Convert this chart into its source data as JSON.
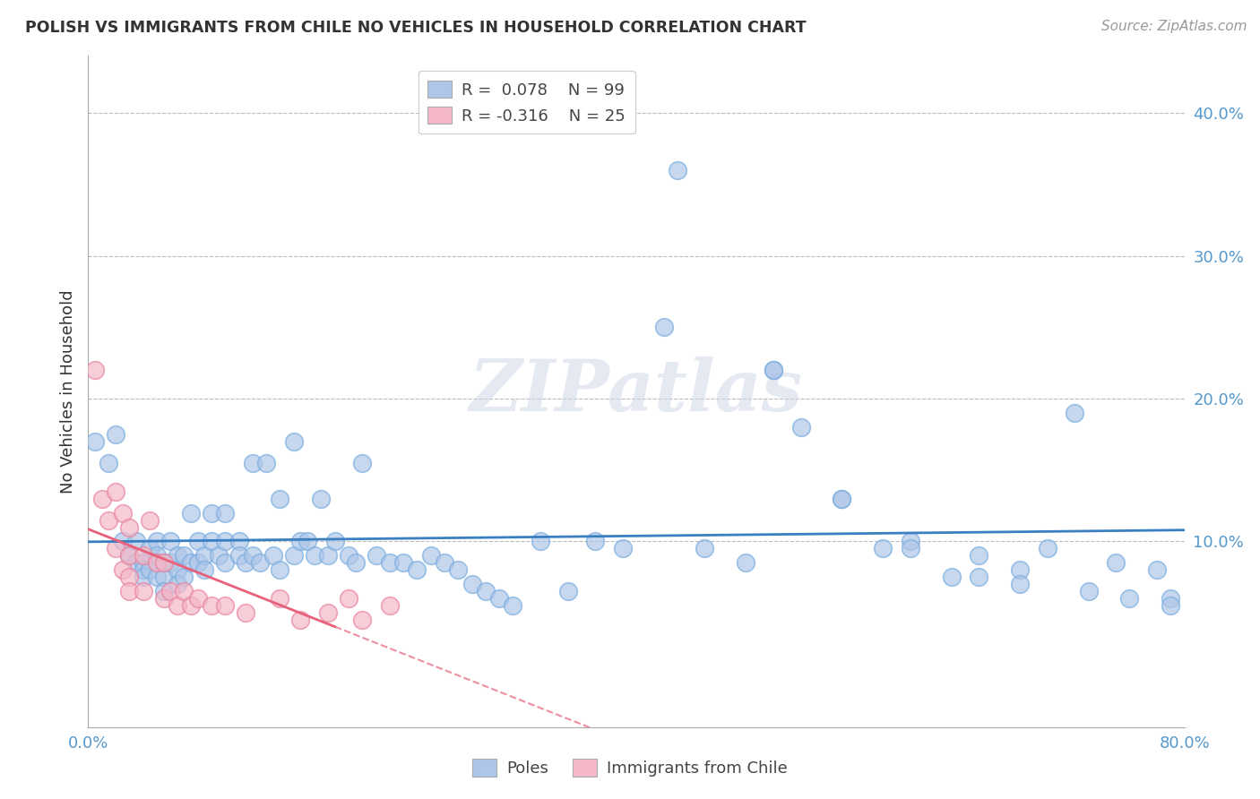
{
  "title": "POLISH VS IMMIGRANTS FROM CHILE NO VEHICLES IN HOUSEHOLD CORRELATION CHART",
  "source": "Source: ZipAtlas.com",
  "ylabel": "No Vehicles in Household",
  "ylabel_right_ticks": [
    "40.0%",
    "30.0%",
    "20.0%",
    "10.0%"
  ],
  "ylabel_right_vals": [
    0.4,
    0.3,
    0.2,
    0.1
  ],
  "xlim": [
    0.0,
    0.8
  ],
  "ylim": [
    -0.03,
    0.44
  ],
  "blue_color": "#aec6e8",
  "blue_edge": "#7aade0",
  "pink_color": "#f4b8c8",
  "pink_edge": "#e882a0",
  "line_blue": "#3a7fc1",
  "line_pink": "#e8607a",
  "poles_x": [
    0.005,
    0.015,
    0.02,
    0.025,
    0.03,
    0.035,
    0.035,
    0.04,
    0.04,
    0.04,
    0.045,
    0.045,
    0.05,
    0.05,
    0.05,
    0.05,
    0.055,
    0.055,
    0.055,
    0.06,
    0.06,
    0.065,
    0.065,
    0.065,
    0.07,
    0.07,
    0.075,
    0.075,
    0.08,
    0.08,
    0.085,
    0.085,
    0.09,
    0.09,
    0.095,
    0.1,
    0.1,
    0.1,
    0.11,
    0.11,
    0.115,
    0.12,
    0.12,
    0.125,
    0.13,
    0.135,
    0.14,
    0.14,
    0.15,
    0.15,
    0.155,
    0.16,
    0.165,
    0.17,
    0.175,
    0.18,
    0.19,
    0.195,
    0.2,
    0.21,
    0.22,
    0.23,
    0.24,
    0.25,
    0.26,
    0.27,
    0.28,
    0.29,
    0.3,
    0.31,
    0.33,
    0.35,
    0.37,
    0.39,
    0.42,
    0.45,
    0.48,
    0.5,
    0.52,
    0.55,
    0.58,
    0.6,
    0.63,
    0.65,
    0.68,
    0.7,
    0.72,
    0.75,
    0.78,
    0.79,
    0.43,
    0.5,
    0.55,
    0.6,
    0.65,
    0.68,
    0.73,
    0.76,
    0.79
  ],
  "poles_y": [
    0.17,
    0.155,
    0.175,
    0.1,
    0.09,
    0.085,
    0.1,
    0.085,
    0.08,
    0.075,
    0.095,
    0.08,
    0.1,
    0.09,
    0.085,
    0.075,
    0.085,
    0.075,
    0.065,
    0.1,
    0.085,
    0.09,
    0.08,
    0.07,
    0.09,
    0.075,
    0.12,
    0.085,
    0.1,
    0.085,
    0.09,
    0.08,
    0.12,
    0.1,
    0.09,
    0.12,
    0.1,
    0.085,
    0.1,
    0.09,
    0.085,
    0.155,
    0.09,
    0.085,
    0.155,
    0.09,
    0.13,
    0.08,
    0.17,
    0.09,
    0.1,
    0.1,
    0.09,
    0.13,
    0.09,
    0.1,
    0.09,
    0.085,
    0.155,
    0.09,
    0.085,
    0.085,
    0.08,
    0.09,
    0.085,
    0.08,
    0.07,
    0.065,
    0.06,
    0.055,
    0.1,
    0.065,
    0.1,
    0.095,
    0.25,
    0.095,
    0.085,
    0.22,
    0.18,
    0.13,
    0.095,
    0.1,
    0.075,
    0.09,
    0.08,
    0.095,
    0.19,
    0.085,
    0.08,
    0.06,
    0.36,
    0.22,
    0.13,
    0.095,
    0.075,
    0.07,
    0.065,
    0.06,
    0.055
  ],
  "chile_x": [
    0.005,
    0.01,
    0.015,
    0.02,
    0.02,
    0.025,
    0.025,
    0.03,
    0.03,
    0.03,
    0.03,
    0.04,
    0.04,
    0.045,
    0.05,
    0.055,
    0.055,
    0.06,
    0.065,
    0.07,
    0.075,
    0.08,
    0.09,
    0.1,
    0.115,
    0.14,
    0.155,
    0.175,
    0.19,
    0.2,
    0.22
  ],
  "chile_y": [
    0.22,
    0.13,
    0.115,
    0.135,
    0.095,
    0.12,
    0.08,
    0.11,
    0.09,
    0.075,
    0.065,
    0.09,
    0.065,
    0.115,
    0.085,
    0.085,
    0.06,
    0.065,
    0.055,
    0.065,
    0.055,
    0.06,
    0.055,
    0.055,
    0.05,
    0.06,
    0.045,
    0.05,
    0.06,
    0.045,
    0.055
  ]
}
